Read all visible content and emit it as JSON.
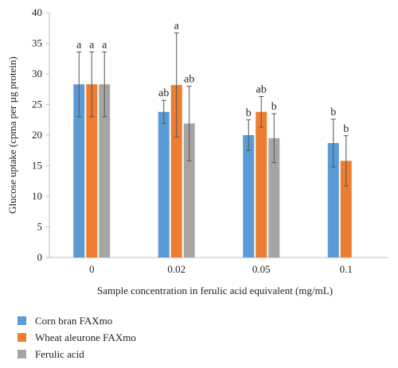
{
  "chart_data": {
    "type": "bar",
    "ylabel": "Glucose uptake (cpma per µg protein)",
    "xlabel": "Sample concentration in ferulic acid equivalent (mg/mL)",
    "categories": [
      "0",
      "0.02",
      "0.05",
      "0.1"
    ],
    "ylim": [
      0,
      40
    ],
    "yticks": [
      0,
      5,
      10,
      15,
      20,
      25,
      30,
      35,
      40
    ],
    "grid": false,
    "legend_position": "bottom-left",
    "series": [
      {
        "name": "Corn bran FAXmo",
        "color": "#5b9bd5",
        "values": [
          28.3,
          23.8,
          20.0,
          18.7
        ],
        "errors": [
          5.3,
          1.9,
          2.5,
          3.9
        ],
        "labels": [
          "a",
          "ab",
          "b",
          "b"
        ]
      },
      {
        "name": "Wheat aleurone FAXmo",
        "color": "#ed7d31",
        "values": [
          28.3,
          28.2,
          23.8,
          15.8
        ],
        "errors": [
          5.3,
          8.5,
          2.5,
          4.1
        ],
        "labels": [
          "a",
          "a",
          "ab",
          "b"
        ]
      },
      {
        "name": "Ferulic acid",
        "color": "#a5a5a5",
        "values": [
          28.3,
          21.9,
          19.5,
          null
        ],
        "errors": [
          5.3,
          6.1,
          4.0,
          null
        ],
        "labels": [
          "a",
          "ab",
          "b",
          ""
        ]
      }
    ]
  }
}
